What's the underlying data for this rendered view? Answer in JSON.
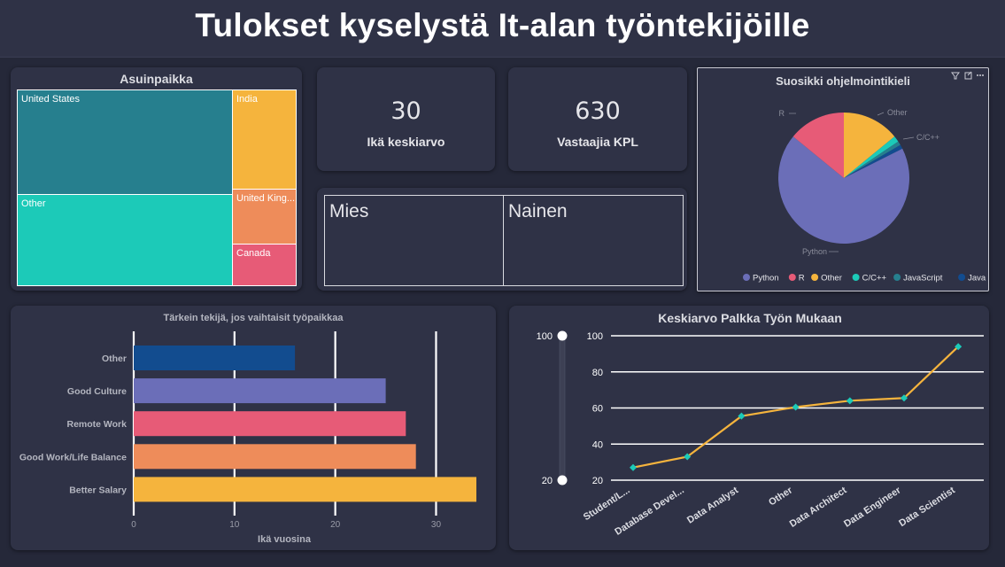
{
  "title": "Tulokset kyselystä It-alan työntekijöille",
  "treemap": {
    "title": "Asuinpaikka",
    "cells": [
      {
        "label": "United States",
        "color": "#267f8e"
      },
      {
        "label": "Other",
        "color": "#1ccab8"
      },
      {
        "label": "India",
        "color": "#f5b43d"
      },
      {
        "label": "United King...",
        "color": "#ee8c5a"
      },
      {
        "label": "Canada",
        "color": "#e75b77"
      }
    ]
  },
  "kpi_age": {
    "value": "30",
    "label": "Ikä keskiarvo"
  },
  "kpi_respondents": {
    "value": "630",
    "label": "Vastaajia KPL"
  },
  "gender": {
    "male": "Mies",
    "female": "Nainen"
  },
  "pie": {
    "title": "Suosikki ohjelmointikieli",
    "icons": {
      "filter": "filter-icon",
      "focus": "focus-mode-icon",
      "more": "more-options-icon"
    },
    "slice_labels": {
      "python": "Python",
      "r": "R",
      "other": "Other",
      "cpp": "C/C++"
    },
    "legend": [
      {
        "label": "Python",
        "color": "#6b6eb8"
      },
      {
        "label": "R",
        "color": "#e75b77"
      },
      {
        "label": "Other",
        "color": "#f5b43d"
      },
      {
        "label": "C/C++",
        "color": "#1ccab8"
      },
      {
        "label": "JavaScript",
        "color": "#267f8e"
      },
      {
        "label": "Java",
        "color": "#124c8f"
      }
    ]
  },
  "line_slider": {
    "max": "100",
    "min": "20"
  },
  "chart_data": [
    {
      "type": "pie",
      "title": "Suosikki ohjelmointikieli",
      "categories": [
        "Python",
        "R",
        "Other",
        "C/C++",
        "JavaScript",
        "Java"
      ],
      "values": [
        68,
        14,
        14,
        1.5,
        1,
        1
      ],
      "colors": [
        "#6b6eb8",
        "#e75b77",
        "#f5b43d",
        "#1ccab8",
        "#267f8e",
        "#124c8f"
      ],
      "legend": "bottom"
    },
    {
      "type": "bar",
      "orientation": "horizontal",
      "title": "Tärkein tekijä, jos vaihtaisit työpaikkaa",
      "categories": [
        "Other",
        "Good Culture",
        "Remote Work",
        "Good Work/Life Balance",
        "Better Salary"
      ],
      "values": [
        16,
        25,
        27,
        28,
        34
      ],
      "colors": [
        "#124c8f",
        "#6b6eb8",
        "#e75b77",
        "#ee8c5a",
        "#f5b43d"
      ],
      "xlabel": "Ikä vuosina",
      "ylabel": "",
      "xlim": [
        0,
        34
      ],
      "xticks": [
        "0",
        "10",
        "20",
        "30"
      ]
    },
    {
      "type": "line",
      "title": "Keskiarvo Palkka Työn Mukaan",
      "categories": [
        "Student/L...",
        "Database Devel...",
        "Data Analyst",
        "Other",
        "Data Architect",
        "Data Engineer",
        "Data Scientist"
      ],
      "values": [
        27,
        33,
        55.5,
        60.5,
        64,
        65.5,
        94
      ],
      "ylim": [
        20,
        100
      ],
      "yticks": [
        "20",
        "40",
        "60",
        "80",
        "100"
      ],
      "xlabel": "",
      "ylabel": "",
      "color": "#f5b43d",
      "marker_color": "#1ccab8",
      "grid": true
    }
  ]
}
